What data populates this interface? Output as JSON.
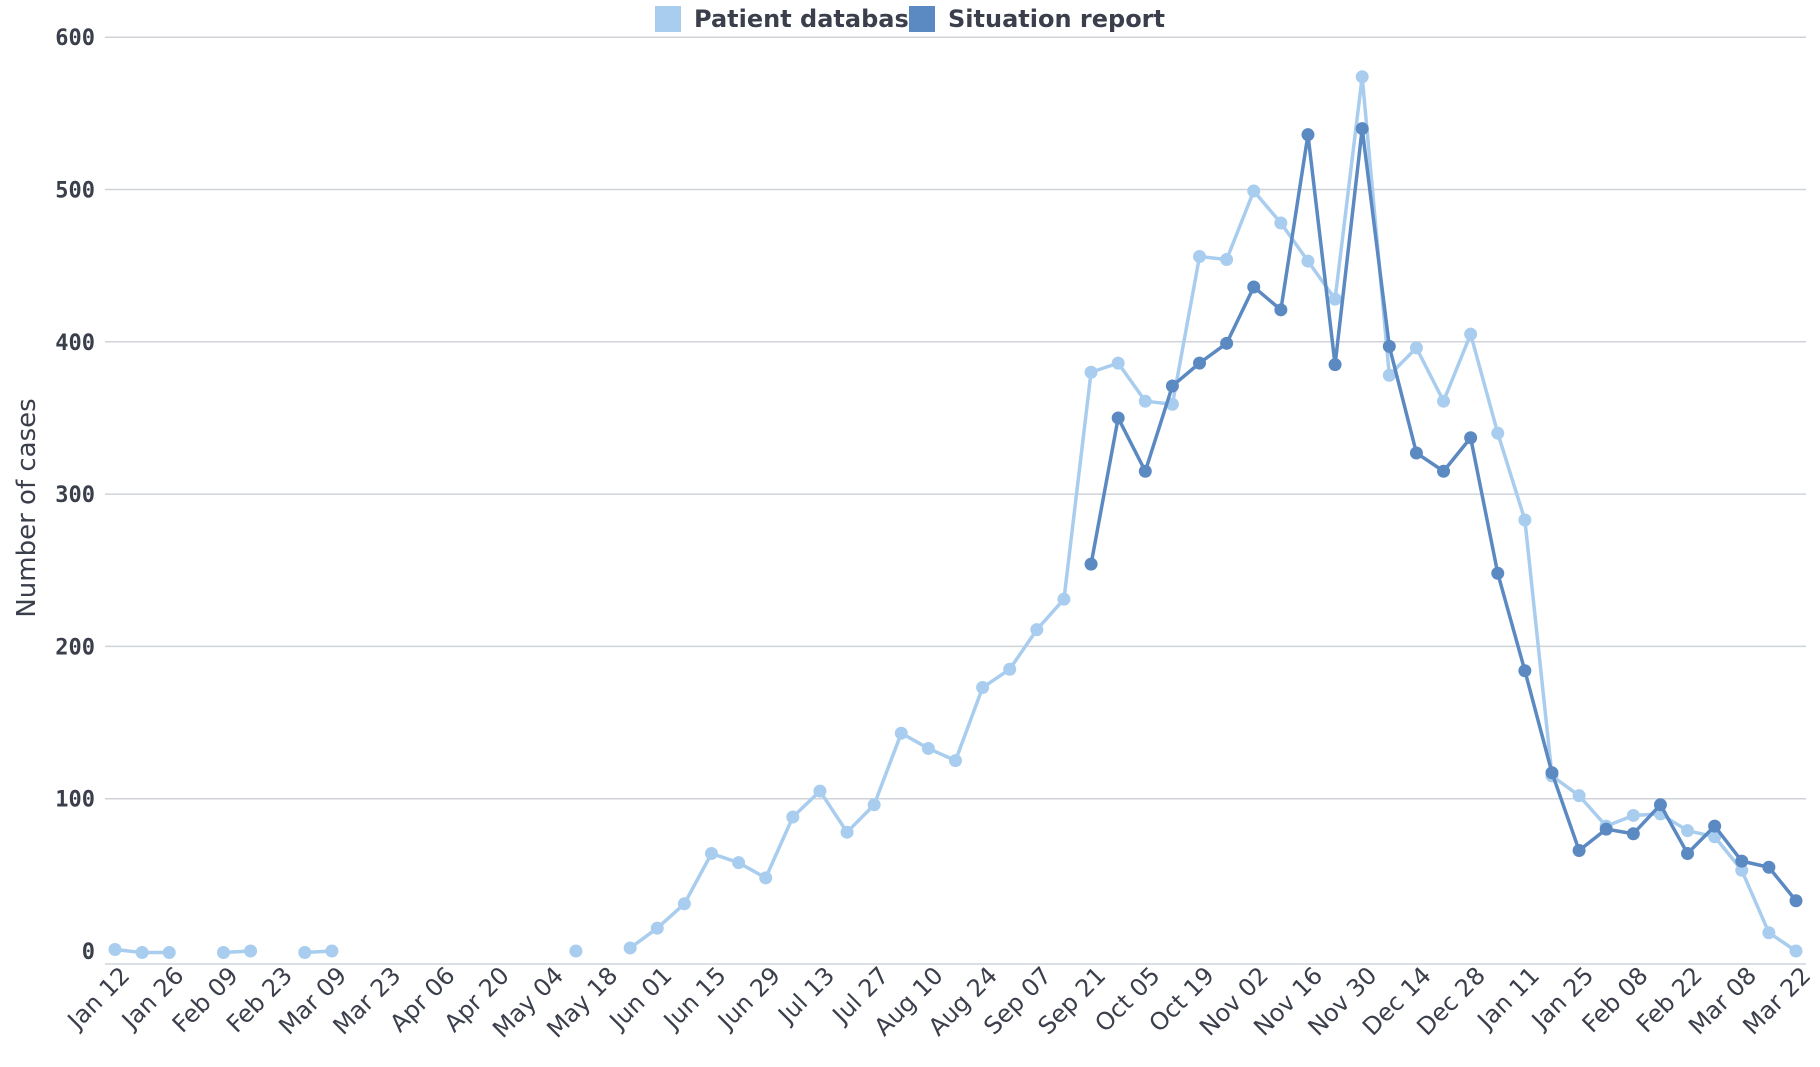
{
  "chart_data": {
    "type": "line",
    "title": "",
    "xlabel": "",
    "ylabel": "Number of cases",
    "ylim": [
      0,
      600
    ],
    "yticks": [
      0,
      100,
      200,
      300,
      400,
      500,
      600
    ],
    "grid": true,
    "legend_position": "top-center",
    "categories": [
      "Jan 12",
      "Jan 19",
      "Jan 26",
      "Feb 02",
      "Feb 09",
      "Feb 16",
      "Feb 23",
      "Mar 02",
      "Mar 09",
      "Mar 16",
      "Mar 23",
      "Mar 30",
      "Apr 06",
      "Apr 13",
      "Apr 20",
      "Apr 27",
      "May 04",
      "May 11",
      "May 18",
      "May 25",
      "Jun 01",
      "Jun 08",
      "Jun 15",
      "Jun 22",
      "Jun 29",
      "Jul 06",
      "Jul 13",
      "Jul 20",
      "Jul 27",
      "Aug 03",
      "Aug 10",
      "Aug 17",
      "Aug 24",
      "Aug 31",
      "Sep 07",
      "Sep 14",
      "Sep 21",
      "Sep 28",
      "Oct 05",
      "Oct 12",
      "Oct 19",
      "Oct 26",
      "Nov 02",
      "Nov 09",
      "Nov 16",
      "Nov 23",
      "Nov 30",
      "Dec 07",
      "Dec 14",
      "Dec 21",
      "Dec 28",
      "Jan 04",
      "Jan 11",
      "Jan 18",
      "Jan 25",
      "Feb 01",
      "Feb 08",
      "Feb 15",
      "Feb 22",
      "Mar 01",
      "Mar 08",
      "Mar 15",
      "Mar 22"
    ],
    "tick_labels": [
      "Jan 12",
      "Jan 26",
      "Feb 09",
      "Feb 23",
      "Mar 09",
      "Mar 23",
      "Apr 06",
      "Apr 20",
      "May 04",
      "May 18",
      "Jun 01",
      "Jun 15",
      "Jun 29",
      "Jul 13",
      "Jul 27",
      "Aug 10",
      "Aug 24",
      "Sep 07",
      "Sep 21",
      "Oct 05",
      "Oct 19",
      "Nov 02",
      "Nov 16",
      "Nov 30",
      "Dec 14",
      "Dec 28",
      "Jan 11",
      "Jan 25",
      "Feb 08",
      "Feb 22",
      "Mar 08",
      "Mar 22"
    ],
    "series": [
      {
        "name": "Patient database",
        "color": "#a9cdee",
        "values": [
          1,
          -1,
          -1,
          null,
          -1,
          0,
          null,
          -1,
          0,
          null,
          null,
          null,
          null,
          null,
          null,
          null,
          null,
          0,
          null,
          2,
          15,
          31,
          64,
          58,
          48,
          88,
          105,
          78,
          96,
          143,
          133,
          125,
          173,
          185,
          211,
          231,
          380,
          386,
          361,
          359,
          456,
          454,
          499,
          478,
          453,
          428,
          574,
          378,
          396,
          361,
          405,
          340,
          283,
          115,
          102,
          82,
          89,
          90,
          79,
          75,
          53,
          12,
          0
        ]
      },
      {
        "name": "Situation report",
        "color": "#5b89c2",
        "values": [
          null,
          null,
          null,
          null,
          null,
          null,
          null,
          null,
          null,
          null,
          null,
          null,
          null,
          null,
          null,
          null,
          null,
          null,
          null,
          null,
          null,
          null,
          null,
          null,
          null,
          null,
          null,
          null,
          null,
          null,
          null,
          null,
          null,
          null,
          null,
          null,
          254,
          350,
          315,
          371,
          386,
          399,
          436,
          421,
          536,
          385,
          540,
          397,
          327,
          315,
          337,
          248,
          184,
          117,
          66,
          80,
          77,
          96,
          64,
          82,
          59,
          55,
          33
        ]
      }
    ]
  }
}
